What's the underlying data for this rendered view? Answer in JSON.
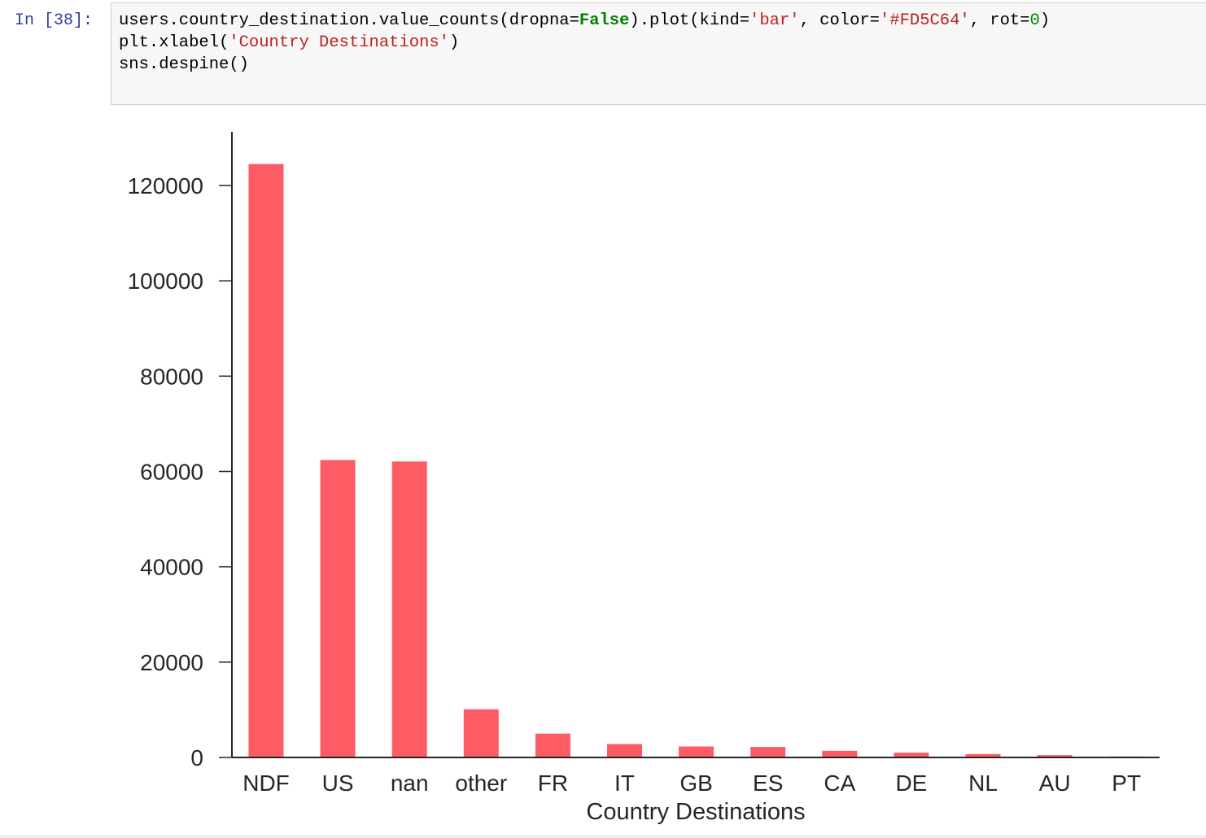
{
  "cell": {
    "prompt": "In [38]:",
    "code_lines": [
      [
        {
          "t": "users.country_destination.value_counts(dropna=",
          "c": ""
        },
        {
          "t": "False",
          "c": "kw"
        },
        {
          "t": ").plot(kind=",
          "c": ""
        },
        {
          "t": "'bar'",
          "c": "str"
        },
        {
          "t": ", color=",
          "c": ""
        },
        {
          "t": "'#FD5C64'",
          "c": "str"
        },
        {
          "t": ", rot=",
          "c": ""
        },
        {
          "t": "0",
          "c": "num"
        },
        {
          "t": ")",
          "c": ""
        }
      ],
      [
        {
          "t": "plt.xlabel(",
          "c": ""
        },
        {
          "t": "'Country Destinations'",
          "c": "str"
        },
        {
          "t": ")",
          "c": ""
        }
      ],
      [
        {
          "t": "sns.despine()",
          "c": ""
        }
      ]
    ]
  },
  "chart_data": {
    "type": "bar",
    "categories": [
      "NDF",
      "US",
      "nan",
      "other",
      "FR",
      "IT",
      "GB",
      "ES",
      "CA",
      "DE",
      "NL",
      "AU",
      "PT"
    ],
    "values": [
      124500,
      62400,
      62100,
      10100,
      5000,
      2800,
      2300,
      2200,
      1400,
      1000,
      700,
      500,
      200
    ],
    "xlabel": "Country Destinations",
    "ylabel": "",
    "title": "",
    "ylim": [
      0,
      131000
    ],
    "yticks": [
      0,
      20000,
      40000,
      60000,
      80000,
      100000,
      120000
    ],
    "bar_color": "#FD5C64",
    "grid": false,
    "despine": true
  }
}
